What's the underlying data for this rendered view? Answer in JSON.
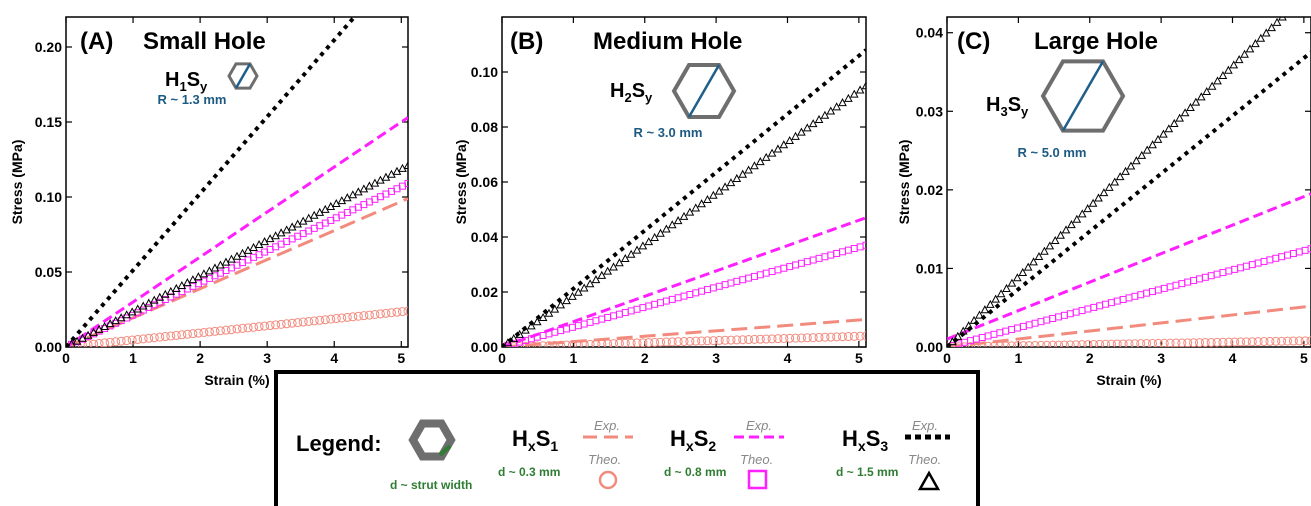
{
  "colors": {
    "series1": "#f28b7e",
    "series2": "#ff1fff",
    "series3": "#000000",
    "hexagon": "#6e6e6e",
    "radius_line": "#1f5f8b",
    "strut_line": "#2e7d32"
  },
  "chart_data": [
    {
      "type": "line",
      "panel_label": "(A)",
      "title": "Small Hole",
      "inset_label": {
        "main": "H",
        "sub1": "1",
        "main2": "S",
        "sub2": "y"
      },
      "radius_label": "R ~ 1.3 mm",
      "xlabel": "Strain (%)",
      "ylabel": "Stress (MPa)",
      "xlim": [
        0,
        5.1
      ],
      "ylim": [
        0,
        0.22
      ],
      "xticks": [
        0,
        1,
        2,
        3,
        4,
        5
      ],
      "xtick_labels": [
        "0",
        "1",
        "2",
        "3",
        "4",
        "5"
      ],
      "yticks": [
        0,
        0.05,
        0.1,
        0.15,
        0.2
      ],
      "ytick_labels": [
        "0.00",
        "0.05",
        "0.10",
        "0.15",
        "0.20"
      ],
      "series": [
        {
          "name": "HxS1 Exp.",
          "style": "dash",
          "color": "#f28b7e",
          "x": [
            0,
            5.1
          ],
          "y": [
            0,
            0.099
          ]
        },
        {
          "name": "HxS1 Theo.",
          "style": "circle",
          "color": "#f28b7e",
          "x": [
            0,
            5.1
          ],
          "y": [
            0,
            0.024
          ]
        },
        {
          "name": "HxS2 Exp.",
          "style": "dash",
          "color": "#ff1fff",
          "x": [
            0,
            5.1
          ],
          "y": [
            0,
            0.153
          ]
        },
        {
          "name": "HxS2 Theo.",
          "style": "square",
          "color": "#ff1fff",
          "x": [
            0,
            5.1
          ],
          "y": [
            0,
            0.109
          ]
        },
        {
          "name": "HxS3 Exp.",
          "style": "dot",
          "color": "#000000",
          "x": [
            0,
            4.3
          ],
          "y": [
            0,
            0.22
          ]
        },
        {
          "name": "HxS3 Theo.",
          "style": "triangle",
          "color": "#000000",
          "x": [
            0,
            5.1
          ],
          "y": [
            0,
            0.121
          ]
        }
      ]
    },
    {
      "type": "line",
      "panel_label": "(B)",
      "title": "Medium Hole",
      "inset_label": {
        "main": "H",
        "sub1": "2",
        "main2": "S",
        "sub2": "y"
      },
      "radius_label": "R ~ 3.0 mm",
      "xlabel": "Strain (%)",
      "ylabel": "Stress (MPa)",
      "xlim": [
        0,
        5.1
      ],
      "ylim": [
        0,
        0.12
      ],
      "xticks": [
        0,
        1,
        2,
        3,
        4,
        5
      ],
      "xtick_labels": [
        "0",
        "1",
        "2",
        "3",
        "4",
        "5"
      ],
      "yticks": [
        0,
        0.02,
        0.04,
        0.06,
        0.08,
        0.1
      ],
      "ytick_labels": [
        "0.00",
        "0.02",
        "0.04",
        "0.06",
        "0.08",
        "0.10"
      ],
      "series": [
        {
          "name": "HxS1 Exp.",
          "style": "dash",
          "color": "#f28b7e",
          "x": [
            0,
            5.1
          ],
          "y": [
            0,
            0.01
          ]
        },
        {
          "name": "HxS1 Theo.",
          "style": "circle",
          "color": "#f28b7e",
          "x": [
            0,
            5.1
          ],
          "y": [
            0,
            0.004
          ]
        },
        {
          "name": "HxS2 Exp.",
          "style": "dash",
          "color": "#ff1fff",
          "x": [
            0,
            5.1
          ],
          "y": [
            0,
            0.047
          ]
        },
        {
          "name": "HxS2 Theo.",
          "style": "square",
          "color": "#ff1fff",
          "x": [
            0,
            5.1
          ],
          "y": [
            0,
            0.037
          ]
        },
        {
          "name": "HxS3 Exp.",
          "style": "dot",
          "color": "#000000",
          "x": [
            0,
            5.1
          ],
          "y": [
            0,
            0.108
          ]
        },
        {
          "name": "HxS3 Theo.",
          "style": "triangle",
          "color": "#000000",
          "x": [
            0,
            5.1
          ],
          "y": [
            0,
            0.095
          ]
        }
      ]
    },
    {
      "type": "line",
      "panel_label": "(C)",
      "title": "Large Hole",
      "inset_label": {
        "main": "H",
        "sub1": "3",
        "main2": "S",
        "sub2": "y"
      },
      "radius_label": "R ~ 5.0 mm",
      "xlabel": "Strain (%)",
      "ylabel": "Stress (MPa)",
      "xlim": [
        0,
        5.1
      ],
      "ylim": [
        0,
        0.042
      ],
      "xticks": [
        0,
        1,
        2,
        3,
        4,
        5
      ],
      "xtick_labels": [
        "0",
        "1",
        "2",
        "3",
        "4",
        "5"
      ],
      "yticks": [
        0,
        0.01,
        0.02,
        0.03,
        0.04
      ],
      "ytick_labels": [
        "0.00",
        "0.01",
        "0.02",
        "0.03",
        "0.04"
      ],
      "series": [
        {
          "name": "HxS1 Exp.",
          "style": "dash",
          "color": "#f28b7e",
          "x": [
            0,
            5.1
          ],
          "y": [
            0,
            0.0052
          ]
        },
        {
          "name": "HxS1 Theo.",
          "style": "circle",
          "color": "#f28b7e",
          "x": [
            0,
            5.1
          ],
          "y": [
            0,
            0.0008
          ]
        },
        {
          "name": "HxS2 Exp.",
          "style": "dash",
          "color": "#ff1fff",
          "x": [
            0,
            5.1
          ],
          "y": [
            0.001,
            0.0195
          ]
        },
        {
          "name": "HxS2 Theo.",
          "style": "square",
          "color": "#ff1fff",
          "x": [
            0,
            5.1
          ],
          "y": [
            0,
            0.0125
          ]
        },
        {
          "name": "HxS3 Exp.",
          "style": "dot",
          "color": "#000000",
          "x": [
            0,
            5.1
          ],
          "y": [
            0,
            0.0375
          ]
        },
        {
          "name": "HxS3 Theo.",
          "style": "triangle",
          "color": "#000000",
          "x": [
            0,
            4.7
          ],
          "y": [
            0,
            0.042
          ]
        }
      ]
    }
  ],
  "legend": {
    "title": "Legend:",
    "strut_label": "d ~ strut width",
    "exp_label": "Exp.",
    "theo_label": "Theo.",
    "items": [
      {
        "main": "H",
        "sub1": "x",
        "main2": "S",
        "sub2": "1",
        "d_label": "d ~ 0.3 mm"
      },
      {
        "main": "H",
        "sub1": "x",
        "main2": "S",
        "sub2": "2",
        "d_label": "d ~ 0.8 mm"
      },
      {
        "main": "H",
        "sub1": "x",
        "main2": "S",
        "sub2": "3",
        "d_label": "d ~ 1.5 mm"
      }
    ]
  }
}
